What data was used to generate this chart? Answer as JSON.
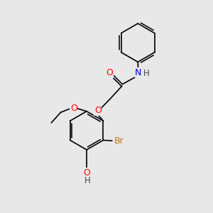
{
  "bg_color": "#e8e8e8",
  "bond_color": "#000000",
  "bond_width": 1.2,
  "atom_colors": {
    "O": "#ff0000",
    "N": "#0000cc",
    "Br": "#b87820",
    "H_dark": "#444444"
  },
  "font_size": 8.5
}
